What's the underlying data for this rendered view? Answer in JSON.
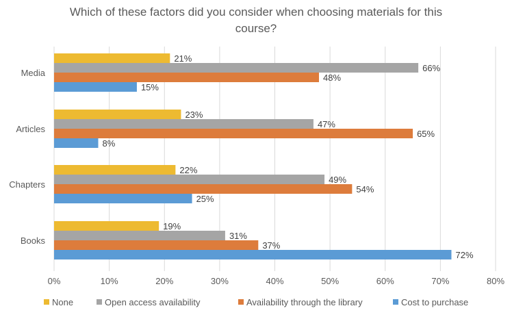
{
  "chart_data": {
    "type": "bar",
    "orientation": "horizontal",
    "title_lines": [
      "Which of these factors did you consider when choosing materials for this",
      "course?"
    ],
    "categories": [
      "Media",
      "Articles",
      "Chapters",
      "Books"
    ],
    "series": [
      {
        "name": "None",
        "color": "#EDBA31",
        "values": [
          21,
          23,
          22,
          19
        ]
      },
      {
        "name": "Open access availability",
        "color": "#A5A5A5",
        "values": [
          66,
          47,
          49,
          31
        ]
      },
      {
        "name": "Availability through the library",
        "color": "#DD7C3C",
        "values": [
          48,
          65,
          54,
          37
        ]
      },
      {
        "name": "Cost to purchase",
        "color": "#5B9BD5",
        "values": [
          15,
          8,
          25,
          72
        ]
      }
    ],
    "value_suffix": "%",
    "xlim": [
      0,
      80
    ],
    "xticks": [
      "0%",
      "10%",
      "20%",
      "30%",
      "40%",
      "50%",
      "60%",
      "70%",
      "80%"
    ],
    "grid": true,
    "legend_position": "bottom"
  }
}
